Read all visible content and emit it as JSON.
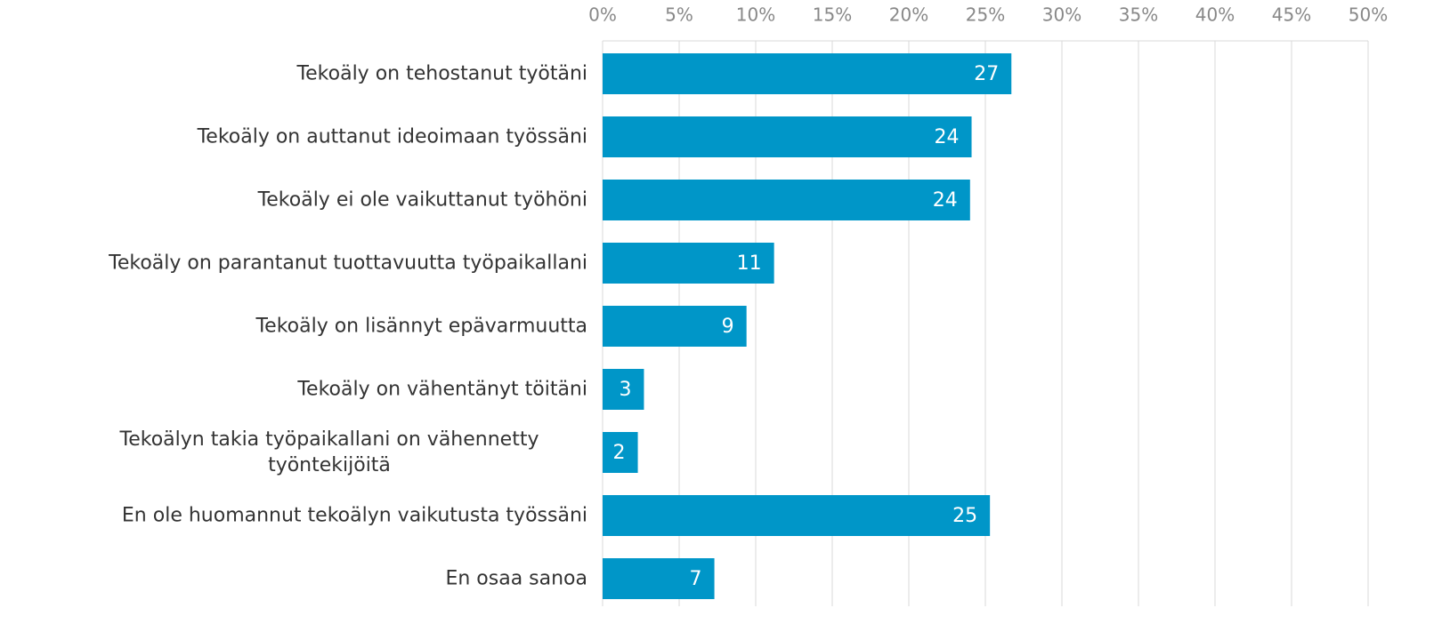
{
  "chart_data": {
    "type": "bar",
    "orientation": "horizontal",
    "categories": [
      "Tekoäly on tehostanut työtäni",
      "Tekoäly on auttanut ideoimaan työssäni",
      "Tekoäly ei ole vaikuttanut työhöni",
      "Tekoäly on parantanut tuottavuutta työpaikallani",
      "Tekoäly on lisännyt epävarmuutta",
      "Tekoäly on vähentänyt töitäni",
      "Tekoälyn takia työpaikallani on vähennetty työntekijöitä",
      "En ole huomannut tekoälyn vaikutusta työssäni",
      "En osaa sanoa"
    ],
    "values": [
      26.7,
      24.1,
      24.0,
      11.2,
      9.4,
      2.7,
      2.3,
      25.3,
      7.3
    ],
    "value_labels": [
      "27",
      "24",
      "24",
      "11",
      "9",
      "3",
      "2",
      "25",
      "7"
    ],
    "color": "#0096c8",
    "xlim": [
      0,
      50
    ],
    "xticks": [
      {
        "value": 0,
        "label": "0%"
      },
      {
        "value": 5,
        "label": "5%"
      },
      {
        "value": 10,
        "label": "10%"
      },
      {
        "value": 15,
        "label": "15%"
      },
      {
        "value": 20,
        "label": "20%"
      },
      {
        "value": 25,
        "label": "25%"
      },
      {
        "value": 30,
        "label": "30%"
      },
      {
        "value": 35,
        "label": "35%"
      },
      {
        "value": 40,
        "label": "40%"
      },
      {
        "value": 45,
        "label": "45%"
      },
      {
        "value": 50,
        "label": "50%"
      }
    ],
    "grid": true
  }
}
